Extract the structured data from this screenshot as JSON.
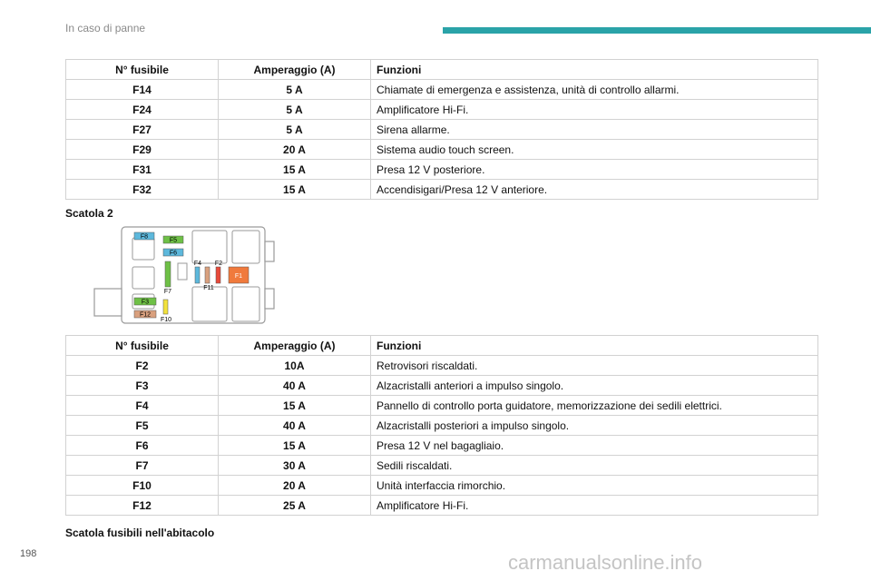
{
  "header": {
    "title": "In caso di panne",
    "accent": "#2aa3a8"
  },
  "table1": {
    "headers": [
      "N° fusibile",
      "Amperaggio (A)",
      "Funzioni"
    ],
    "rows": [
      {
        "fuse": "F14",
        "amp": "5 A",
        "func": "Chiamate di emergenza e assistenza, unità di controllo allarmi."
      },
      {
        "fuse": "F24",
        "amp": "5 A",
        "func": "Amplificatore Hi-Fi."
      },
      {
        "fuse": "F27",
        "amp": "5 A",
        "func": "Sirena allarme."
      },
      {
        "fuse": "F29",
        "amp": "20 A",
        "func": "Sistema audio touch screen."
      },
      {
        "fuse": "F31",
        "amp": "15 A",
        "func": "Presa 12 V posteriore."
      },
      {
        "fuse": "F32",
        "amp": "15 A",
        "func": "Accendisigari/Presa 12 V anteriore."
      }
    ]
  },
  "caption1": "Scatola 2",
  "diagram": {
    "labels": {
      "F8": "F8",
      "F5": "F5",
      "F6": "F6",
      "F4": "F4",
      "F2": "F2",
      "F1": "F1",
      "F11": "F11",
      "F7": "F7",
      "F3": "F3",
      "F12": "F12",
      "F10": "F10"
    },
    "colors": {
      "blue": "#5db8dc",
      "green": "#6ec046",
      "red": "#e84a3a",
      "orange": "#f07a3c",
      "tan": "#d9a07e",
      "yellow": "#f2e23c"
    }
  },
  "table2": {
    "headers": [
      "N° fusibile",
      "Amperaggio (A)",
      "Funzioni"
    ],
    "rows": [
      {
        "fuse": "F2",
        "amp": "10A",
        "func": "Retrovisori riscaldati."
      },
      {
        "fuse": "F3",
        "amp": "40 A",
        "func": "Alzacristalli anteriori a impulso singolo."
      },
      {
        "fuse": "F4",
        "amp": "15 A",
        "func": "Pannello di controllo porta guidatore, memorizzazione dei sedili elettrici."
      },
      {
        "fuse": "F5",
        "amp": "40 A",
        "func": "Alzacristalli posteriori a impulso singolo."
      },
      {
        "fuse": "F6",
        "amp": "15 A",
        "func": "Presa 12 V nel bagagliaio."
      },
      {
        "fuse": "F7",
        "amp": "30 A",
        "func": "Sedili riscaldati."
      },
      {
        "fuse": "F10",
        "amp": "20 A",
        "func": "Unità interfaccia rimorchio."
      },
      {
        "fuse": "F12",
        "amp": "25 A",
        "func": "Amplificatore Hi-Fi."
      }
    ]
  },
  "caption2": "Scatola fusibili nell'abitacolo",
  "page_number": "198",
  "watermark": "carmanualsonline.info"
}
